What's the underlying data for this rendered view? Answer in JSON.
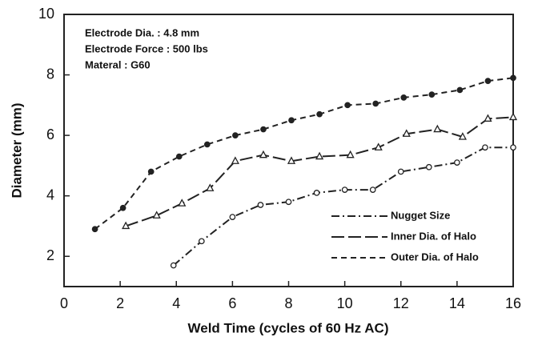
{
  "chart_data": {
    "type": "line",
    "annotations": [
      "Electrode Dia. : 4.8 mm",
      "Electrode Force : 500 lbs",
      "Materal : G60"
    ],
    "x_label": "Weld Time (cycles of 60 Hz AC)",
    "y_label": "Diameter (mm)",
    "xlim": [
      0,
      16
    ],
    "xticks": [
      0,
      2,
      4,
      6,
      8,
      10,
      12,
      14,
      16
    ],
    "ylim": [
      1,
      10
    ],
    "yticks": [
      2,
      4,
      6,
      8,
      10
    ],
    "legend": "lower right",
    "series": [
      {
        "name": "Nugget Size",
        "color": "#222",
        "dash": "dash-dot",
        "marker": "circle-open",
        "x": [
          3.9,
          4.9,
          6,
          7,
          8,
          9,
          10,
          11,
          12,
          13,
          14,
          15,
          16
        ],
        "values": [
          1.7,
          2.5,
          3.3,
          3.7,
          3.8,
          4.1,
          4.2,
          4.2,
          4.8,
          4.95,
          5.1,
          5.6,
          5.6
        ]
      },
      {
        "name": "Inner Dia. of Halo",
        "color": "#222",
        "dash": "long-dash",
        "marker": "triangle-open",
        "x": [
          2.2,
          3.3,
          4.2,
          5.2,
          6.1,
          7.1,
          8.1,
          9.1,
          10.2,
          11.2,
          12.2,
          13.3,
          14.2,
          15.1,
          16
        ],
        "values": [
          3.0,
          3.35,
          3.75,
          4.25,
          5.15,
          5.35,
          5.15,
          5.3,
          5.35,
          5.6,
          6.05,
          6.2,
          5.95,
          6.55,
          6.6
        ]
      },
      {
        "name": "Outer Dia. of Halo",
        "color": "#222",
        "dash": "dash",
        "marker": "circle-filled",
        "x": [
          1.1,
          2.1,
          3.1,
          4.1,
          5.1,
          6.1,
          7.1,
          8.1,
          9.1,
          10.1,
          11.1,
          12.1,
          13.1,
          14.1,
          15.1,
          16
        ],
        "values": [
          2.9,
          3.6,
          4.8,
          5.3,
          5.7,
          6.0,
          6.2,
          6.5,
          6.7,
          7.0,
          7.05,
          7.25,
          7.35,
          7.5,
          7.8,
          7.9
        ]
      }
    ]
  }
}
